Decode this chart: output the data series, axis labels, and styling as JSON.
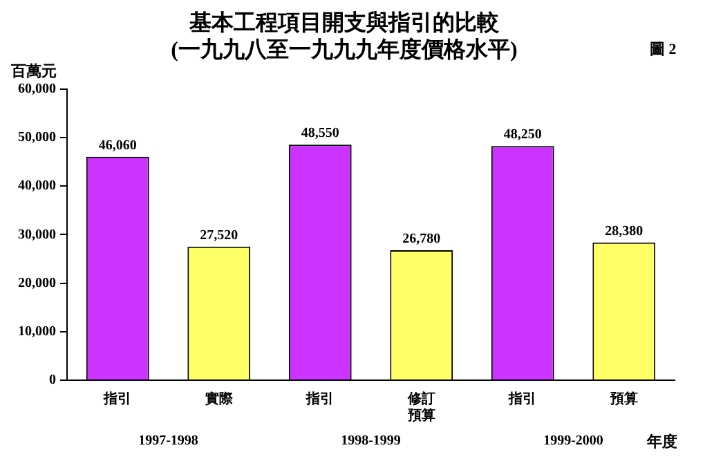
{
  "chart_data": {
    "type": "bar",
    "title": "基本工程項目開支與指引的比較",
    "subtitle": "(一九九八至一九九九年度價格水平)",
    "ylabel": "百萬元",
    "xlabel": "年度",
    "categories": [
      "指引",
      "實際",
      "指引",
      "修訂預算",
      "指引",
      "預算"
    ],
    "values": [
      46060,
      27520,
      48550,
      26780,
      48250,
      28380
    ],
    "value_labels": [
      "46,060",
      "27,520",
      "48,550",
      "26,780",
      "48,250",
      "28,380"
    ],
    "colors": [
      "#cc33ff",
      "#ffff66",
      "#cc33ff",
      "#ffff66",
      "#cc33ff",
      "#ffff66"
    ],
    "ylim": [
      0,
      60000
    ],
    "yticks": [
      {
        "value": 0,
        "label": "0"
      },
      {
        "value": 10000,
        "label": "10,000"
      },
      {
        "value": 20000,
        "label": "20,000"
      },
      {
        "value": 30000,
        "label": "30,000"
      },
      {
        "value": 40000,
        "label": "40,000"
      },
      {
        "value": 50000,
        "label": "50,000"
      },
      {
        "value": 60000,
        "label": "60,000"
      }
    ],
    "grid": false,
    "legend": false,
    "annotations": [
      "1997-1998",
      "1998-1999",
      "1999-2000",
      "圖 2"
    ]
  }
}
